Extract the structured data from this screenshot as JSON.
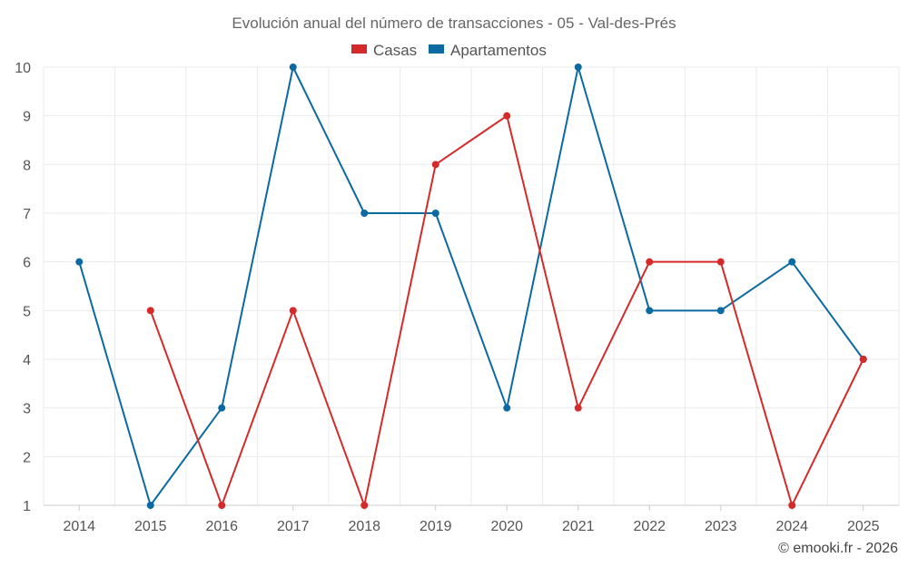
{
  "chart_data": {
    "type": "line",
    "title": "Evolución anual del número de transacciones - 05 - Val-des-Prés",
    "xlabel": "",
    "ylabel": "",
    "categories": [
      "2014",
      "2015",
      "2016",
      "2017",
      "2018",
      "2019",
      "2020",
      "2021",
      "2022",
      "2023",
      "2024",
      "2025"
    ],
    "ylim": [
      1,
      10
    ],
    "yticks": [
      "1",
      "2",
      "3",
      "4",
      "5",
      "6",
      "7",
      "8",
      "9",
      "10"
    ],
    "grid": true,
    "legend_position": "top-center",
    "series": [
      {
        "name": "Casas",
        "color": "#d42a2a",
        "values": [
          null,
          5,
          1,
          5,
          1,
          8,
          9,
          3,
          6,
          6,
          1,
          4
        ]
      },
      {
        "name": "Apartamentos",
        "color": "#0a6aa1",
        "values": [
          6,
          1,
          3,
          10,
          7,
          7,
          3,
          10,
          5,
          5,
          6,
          4
        ]
      }
    ]
  },
  "credit": "© emooki.fr - 2026",
  "colors": {
    "grid": "#ebebeb",
    "axis": "#cccccc"
  }
}
